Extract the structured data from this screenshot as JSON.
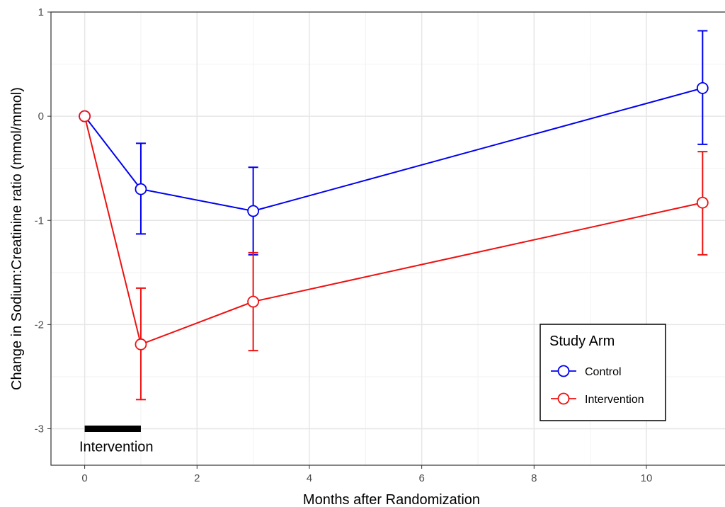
{
  "chart_data": {
    "type": "line",
    "xlabel": "Months after Randomization",
    "ylabel": "Change in Sodium:Creatinine ratio (mmol/mmol)",
    "xlim": [
      -0.6,
      11.5
    ],
    "ylim": [
      -3.35,
      1.0
    ],
    "x_ticks": [
      0,
      2,
      4,
      6,
      8,
      10
    ],
    "y_ticks": [
      1,
      0,
      -1,
      -2,
      -3
    ],
    "x_tick_labels": [
      "0",
      "2",
      "4",
      "6",
      "8",
      "10"
    ],
    "y_tick_labels": [
      "1",
      "0",
      "-1",
      "-2",
      "-3"
    ],
    "grid": true,
    "legend": {
      "title": "Study Arm",
      "placement": "bottom-right"
    },
    "series": [
      {
        "name": "Control",
        "color": "#0000ee",
        "points": [
          {
            "x": 0,
            "y": 0.0
          },
          {
            "x": 1,
            "y": -0.7,
            "lo": -1.13,
            "hi": -0.26
          },
          {
            "x": 3,
            "y": -0.91,
            "lo": -1.33,
            "hi": -0.49
          },
          {
            "x": 11,
            "y": 0.27,
            "lo": -0.27,
            "hi": 0.82
          }
        ]
      },
      {
        "name": "Intervention",
        "color": "#ee1111",
        "points": [
          {
            "x": 0,
            "y": 0.0
          },
          {
            "x": 1,
            "y": -2.19,
            "lo": -2.72,
            "hi": -1.65
          },
          {
            "x": 3,
            "y": -1.78,
            "lo": -2.25,
            "hi": -1.31
          },
          {
            "x": 11,
            "y": -0.83,
            "lo": -1.33,
            "hi": -0.34
          }
        ]
      }
    ],
    "annotation": {
      "text": "Intervention",
      "x_start": 0,
      "x_end": 1,
      "y": -3.0
    }
  }
}
